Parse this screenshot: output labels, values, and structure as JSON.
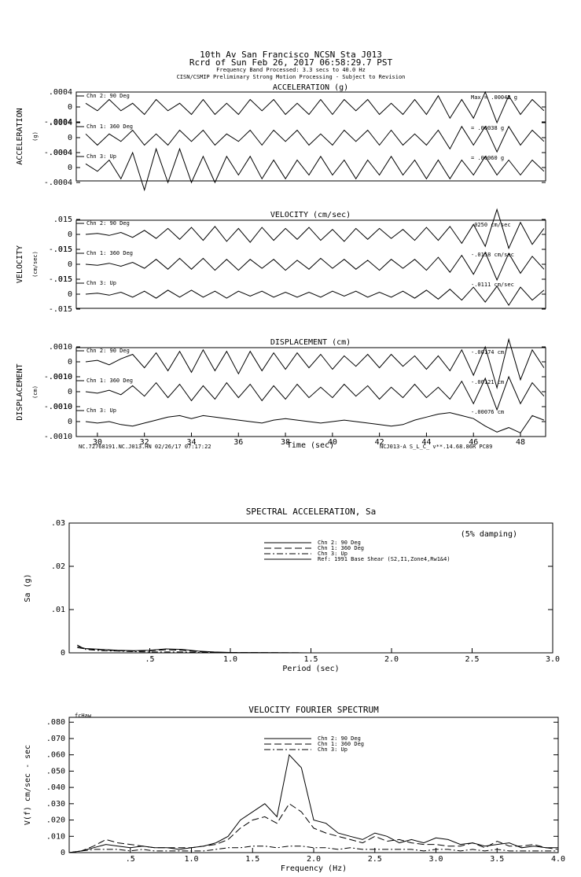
{
  "header": {
    "lines": [
      "10th Av San Francisco     NCSN Sta J013",
      "Rcrd of Sun Feb 26, 2017 06:58:29.7 PST",
      "Frequency Band Processed: 3.3 secs to 40.0 Hz",
      "CISN/CSMIP Preliminary Strong Motion Processing - Subject to Revision"
    ]
  },
  "chart_data": [
    {
      "type": "waveform",
      "title": "ACCELERATION (g)",
      "ylabel": "ACCELERATION",
      "yunit": "(g)",
      "x": [
        29.5,
        30,
        30.5,
        31,
        31.5,
        32,
        32.5,
        33,
        33.5,
        34,
        34.5,
        35,
        35.5,
        36,
        36.5,
        37,
        37.5,
        38,
        38.5,
        39,
        39.5,
        40,
        40.5,
        41,
        41.5,
        42,
        42.5,
        43,
        43.5,
        44,
        44.5,
        45,
        45.5,
        46,
        46.5,
        47,
        47.5,
        48,
        48.5,
        49
      ],
      "xlim": [
        29.1,
        49.07
      ],
      "ylim": [
        -0.0004,
        0.0004
      ],
      "yticks": [
        {
          "value": 0.0004,
          "label": ".0004"
        },
        0,
        {
          "value": -0.0004,
          "label": "-.0004"
        }
      ],
      "series": [
        {
          "name": "Chn 2: 90 Deg",
          "max_label": "Max = .00042 g",
          "color": "#000000",
          "values": [
            0.0001,
            -0.0001,
            0.0002,
            -0.0001,
            0.0001,
            -0.0002,
            0.0002,
            -0.0001,
            0.0001,
            -0.0002,
            0.0002,
            -0.0002,
            0.0001,
            -0.0002,
            0.0002,
            -0.0001,
            0.0002,
            -0.0002,
            0.0001,
            -0.0002,
            0.0002,
            -0.0002,
            0.0002,
            -0.0001,
            0.0002,
            -0.0002,
            0.0001,
            -0.0002,
            0.0002,
            -0.0002,
            0.0003,
            -0.0003,
            0.0002,
            -0.0003,
            0.0004,
            -0.00042,
            0.0003,
            -0.0002,
            0.0002,
            -0.0001
          ]
        },
        {
          "name": "Chn 1: 360 Deg",
          "max_label": "= .00038 g",
          "color": "#000000",
          "values": [
            0.0001,
            -0.0002,
            0.0001,
            -0.0001,
            0.0002,
            -0.0002,
            0.0001,
            -0.0002,
            0.0002,
            -0.0001,
            0.0002,
            -0.0002,
            0.0001,
            -0.0001,
            0.0002,
            -0.0002,
            0.0002,
            -0.0001,
            0.0002,
            -0.0002,
            0.0001,
            -0.0002,
            0.0002,
            -0.0001,
            0.0002,
            -0.0002,
            0.0002,
            -0.0002,
            0.0001,
            -0.0002,
            0.0002,
            -0.0003,
            0.0003,
            -0.0002,
            0.0003,
            -0.00038,
            0.0003,
            -0.0002,
            0.0002,
            -0.0001
          ]
        },
        {
          "name": "Chn 3: Up",
          "max_label": "= .00060 g",
          "color": "#000000",
          "values": [
            0.0001,
            -0.0001,
            0.0002,
            -0.0003,
            0.0004,
            -0.0006,
            0.0005,
            -0.0004,
            0.0005,
            -0.0004,
            0.0003,
            -0.0004,
            0.0003,
            -0.0002,
            0.0003,
            -0.0003,
            0.0002,
            -0.0003,
            0.0002,
            -0.0002,
            0.0003,
            -0.0002,
            0.0002,
            -0.0003,
            0.0002,
            -0.0002,
            0.0003,
            -0.0002,
            0.0002,
            -0.0003,
            0.0002,
            -0.0003,
            0.0002,
            -0.0002,
            0.0003,
            -0.0002,
            0.0002,
            -0.0002,
            0.0002,
            -0.0001
          ]
        }
      ]
    },
    {
      "type": "waveform",
      "title": "VELOCITY (cm/sec)",
      "ylabel": "VELOCITY",
      "yunit": "(cm/sec)",
      "x": [
        29.5,
        30,
        30.5,
        31,
        31.5,
        32,
        32.5,
        33,
        33.5,
        34,
        34.5,
        35,
        35.5,
        36,
        36.5,
        37,
        37.5,
        38,
        38.5,
        39,
        39.5,
        40,
        40.5,
        41,
        41.5,
        42,
        42.5,
        43,
        43.5,
        44,
        44.5,
        45,
        45.5,
        46,
        46.5,
        47,
        47.5,
        48,
        48.5,
        49
      ],
      "xlim": [
        29.1,
        49.07
      ],
      "ylim": [
        -0.015,
        0.015
      ],
      "yticks": [
        {
          "value": 0.015,
          "label": ".015"
        },
        0,
        {
          "value": -0.015,
          "label": "-.015"
        }
      ],
      "series": [
        {
          "name": "Chn 2: 90 Deg",
          "max_label": ".0250 cm/sec",
          "color": "#000000",
          "values": [
            0,
            0.001,
            -0.001,
            0.002,
            -0.003,
            0.004,
            -0.004,
            0.006,
            -0.005,
            0.007,
            -0.006,
            0.008,
            -0.007,
            0.006,
            -0.008,
            0.007,
            -0.006,
            0.006,
            -0.005,
            0.007,
            -0.006,
            0.005,
            -0.007,
            0.006,
            -0.005,
            0.006,
            -0.004,
            0.005,
            -0.006,
            0.007,
            -0.006,
            0.008,
            -0.009,
            0.01,
            -0.012,
            0.025,
            -0.014,
            0.012,
            -0.01,
            0.006
          ]
        },
        {
          "name": "Chn 1: 360 Deg",
          "max_label": "-.0158 cm/sec",
          "color": "#000000",
          "values": [
            0,
            -0.001,
            0.001,
            -0.002,
            0.002,
            -0.004,
            0.005,
            -0.005,
            0.006,
            -0.005,
            0.006,
            -0.006,
            0.005,
            -0.006,
            0.005,
            -0.004,
            0.005,
            -0.006,
            0.004,
            -0.005,
            0.006,
            -0.004,
            0.005,
            -0.005,
            0.004,
            -0.006,
            0.005,
            -0.004,
            0.005,
            -0.006,
            0.007,
            -0.008,
            0.009,
            -0.01,
            0.012,
            -0.0158,
            0.011,
            -0.009,
            0.008,
            -0.005
          ]
        },
        {
          "name": "Chn 3: Up",
          "max_label": "-.0111 cm/sec",
          "color": "#000000",
          "values": [
            0,
            0.001,
            -0.001,
            0.002,
            -0.003,
            0.003,
            -0.004,
            0.004,
            -0.003,
            0.004,
            -0.003,
            0.003,
            -0.004,
            0.003,
            -0.002,
            0.003,
            -0.003,
            0.002,
            -0.003,
            0.002,
            -0.003,
            0.003,
            -0.002,
            0.003,
            -0.003,
            0.002,
            -0.003,
            0.003,
            -0.004,
            0.004,
            -0.005,
            0.005,
            -0.006,
            0.007,
            -0.008,
            0.008,
            -0.0111,
            0.007,
            -0.006,
            0.004
          ]
        }
      ]
    },
    {
      "type": "waveform",
      "title": "DISPLACEMENT (cm)",
      "ylabel": "DISPLACEMENT",
      "yunit": "(cm)",
      "x": [
        29.5,
        30,
        30.5,
        31,
        31.5,
        32,
        32.5,
        33,
        33.5,
        34,
        34.5,
        35,
        35.5,
        36,
        36.5,
        37,
        37.5,
        38,
        38.5,
        39,
        39.5,
        40,
        40.5,
        41,
        41.5,
        42,
        42.5,
        43,
        43.5,
        44,
        44.5,
        45,
        45.5,
        46,
        46.5,
        47,
        47.5,
        48,
        48.5,
        49
      ],
      "xlim": [
        29.1,
        49.07
      ],
      "ylim": [
        -0.001,
        0.001
      ],
      "yticks": [
        {
          "value": 0.001,
          "label": ".0010"
        },
        0,
        {
          "value": -0.001,
          "label": "-.0010"
        }
      ],
      "xticks": [
        30,
        32,
        34,
        36,
        38,
        40,
        42,
        44,
        46,
        48
      ],
      "xlabel": "Time (sec)",
      "footer_left": "NC.72768191.NC.J013.HN 02/26/17 07:17:22",
      "footer_right": "NCJ013-A  S_L_C_  v**.14.68.86R PC89",
      "series": [
        {
          "name": "Chn 2: 90 Deg",
          "max_label": "-.00174 cm",
          "color": "#000000",
          "values": [
            0,
            0.0001,
            -0.0002,
            0.0002,
            0.0005,
            -0.0004,
            0.0006,
            -0.0006,
            0.0007,
            -0.0007,
            0.0008,
            -0.0006,
            0.0007,
            -0.0008,
            0.0007,
            -0.0006,
            0.0006,
            -0.0005,
            0.0006,
            -0.0004,
            0.0005,
            -0.0005,
            0.0004,
            -0.0003,
            0.0005,
            -0.0004,
            0.0005,
            -0.0003,
            0.0004,
            -0.0005,
            0.0004,
            -0.0006,
            0.0008,
            -0.0009,
            0.001,
            -0.00174,
            0.0015,
            -0.0012,
            0.0008,
            -0.0004
          ]
        },
        {
          "name": "Chn 1: 360 Deg",
          "max_label": "-.00121 cm",
          "color": "#000000",
          "values": [
            0,
            -0.0001,
            0.0001,
            -0.0002,
            0.0004,
            -0.0003,
            0.0006,
            -0.0004,
            0.0005,
            -0.0006,
            0.0004,
            -0.0005,
            0.0006,
            -0.0004,
            0.0005,
            -0.0006,
            0.0004,
            -0.0005,
            0.0005,
            -0.0004,
            0.0003,
            -0.0004,
            0.0005,
            -0.0003,
            0.0004,
            -0.0005,
            0.0003,
            -0.0004,
            0.0005,
            -0.0004,
            0.0003,
            -0.0005,
            0.0007,
            -0.0008,
            0.0009,
            -0.00121,
            0.001,
            -0.0008,
            0.0006,
            -0.0003
          ]
        },
        {
          "name": "Chn 3: Up",
          "max_label": "-.00076 cm",
          "color": "#000000",
          "values": [
            0,
            -0.0001,
            0,
            -0.0002,
            -0.0003,
            -0.0001,
            0.0001,
            0.0003,
            0.0004,
            0.0002,
            0.0004,
            0.0003,
            0.0002,
            0.0001,
            0,
            -0.0001,
            0.0001,
            0.0002,
            0.0001,
            0,
            -0.0001,
            0,
            0.0001,
            0,
            -0.0001,
            -0.0002,
            -0.0003,
            -0.0002,
            0.0001,
            0.0003,
            0.0005,
            0.0006,
            0.0004,
            0.0002,
            -0.0003,
            -0.0007,
            -0.0004,
            -0.00076,
            0.0004,
            0.0001
          ]
        }
      ]
    },
    {
      "type": "line",
      "title": "SPECTRAL ACCELERATION, Sa",
      "xlabel": "Period (sec)",
      "ylabel": "Sa (g)",
      "annotation": "(5% damping)",
      "x": [
        0.05,
        0.1,
        0.2,
        0.3,
        0.4,
        0.5,
        0.6,
        0.7,
        0.8,
        0.9,
        1.0,
        1.5,
        2.0,
        2.5,
        3.0
      ],
      "xlim": [
        0,
        3
      ],
      "ylim": [
        0,
        0.03
      ],
      "xticks": [
        {
          "value": 0.5,
          "label": ".5"
        },
        {
          "value": 1,
          "label": "1.0"
        },
        {
          "value": 1.5,
          "label": "1.5"
        },
        {
          "value": 2,
          "label": "2.0"
        },
        {
          "value": 2.5,
          "label": "2.5"
        },
        {
          "value": 3,
          "label": "3.0"
        }
      ],
      "yticks": [
        0,
        {
          "value": 0.01,
          "label": ".01"
        },
        {
          "value": 0.02,
          "label": ".02"
        },
        {
          "value": 0.03,
          "label": ".03"
        }
      ],
      "series": [
        {
          "name": "Chn 2: 90 Deg",
          "color": "#000000",
          "dash": "none",
          "values": [
            0.0015,
            0.001,
            0.0008,
            0.0006,
            0.0005,
            0.0006,
            0.0009,
            0.0008,
            0.0004,
            0.0002,
            0.0001,
            0,
            0,
            0,
            0
          ]
        },
        {
          "name": "Chn 1: 360 Deg",
          "color": "#000000",
          "dash": "9 4",
          "values": [
            0.0012,
            0.0009,
            0.0007,
            0.0005,
            0.0004,
            0.0005,
            0.0007,
            0.0006,
            0.0003,
            0.0001,
            0.0001,
            0,
            0,
            0,
            0
          ]
        },
        {
          "name": "Chn 3: Up",
          "color": "#000000",
          "dash": "8 3 2 3",
          "values": [
            0.0018,
            0.0008,
            0.0005,
            0.0004,
            0.0003,
            0.0002,
            0.0002,
            0.0002,
            0.0001,
            0.0001,
            0,
            0,
            0,
            0,
            0
          ]
        },
        {
          "name": "Ref: 1991 Base Shear (S2,I1,Zone4,Rw1&4)",
          "color": "#000000",
          "dash": "none",
          "values": [
            null,
            null,
            null,
            null,
            null,
            null,
            null,
            null,
            null,
            null,
            null,
            null,
            null,
            null,
            null
          ]
        }
      ]
    },
    {
      "type": "line",
      "title": "VELOCITY FOURIER SPECTRUM",
      "xlabel": "Frequency (Hz)",
      "ylabel": "V(f)  cm/sec - sec",
      "annotation": "fcHaw",
      "x": [
        0,
        0.1,
        0.2,
        0.3,
        0.4,
        0.5,
        0.6,
        0.7,
        0.8,
        0.9,
        1.0,
        1.1,
        1.2,
        1.3,
        1.4,
        1.5,
        1.6,
        1.7,
        1.8,
        1.9,
        2.0,
        2.1,
        2.2,
        2.3,
        2.4,
        2.5,
        2.6,
        2.7,
        2.8,
        2.9,
        3.0,
        3.1,
        3.2,
        3.3,
        3.4,
        3.5,
        3.6,
        3.7,
        3.8,
        3.9,
        4.0
      ],
      "xlim": [
        0,
        4
      ],
      "ylim": [
        0,
        0.083
      ],
      "xticks": [
        {
          "value": 0.5,
          "label": ".5"
        },
        {
          "value": 1,
          "label": "1.0"
        },
        {
          "value": 1.5,
          "label": "1.5"
        },
        {
          "value": 2,
          "label": "2.0"
        },
        {
          "value": 2.5,
          "label": "2.5"
        },
        {
          "value": 3,
          "label": "3.0"
        },
        {
          "value": 3.5,
          "label": "3.5"
        },
        {
          "value": 4,
          "label": "4.0"
        }
      ],
      "yticks": [
        0,
        {
          "value": 0.01,
          "label": ".010"
        },
        {
          "value": 0.02,
          "label": ".020"
        },
        {
          "value": 0.03,
          "label": ".030"
        },
        {
          "value": 0.04,
          "label": ".040"
        },
        {
          "value": 0.05,
          "label": ".050"
        },
        {
          "value": 0.06,
          "label": ".060"
        },
        {
          "value": 0.07,
          "label": ".070"
        },
        {
          "value": 0.08,
          "label": ".080"
        }
      ],
      "series": [
        {
          "name": "Chn 2: 90 Deg",
          "color": "#000000",
          "dash": "none",
          "values": [
            0,
            0.001,
            0.003,
            0.005,
            0.004,
            0.003,
            0.004,
            0.003,
            0.003,
            0.002,
            0.003,
            0.004,
            0.006,
            0.01,
            0.02,
            0.025,
            0.03,
            0.022,
            0.06,
            0.052,
            0.02,
            0.018,
            0.012,
            0.01,
            0.008,
            0.012,
            0.01,
            0.006,
            0.008,
            0.006,
            0.009,
            0.008,
            0.005,
            0.006,
            0.004,
            0.005,
            0.006,
            0.003,
            0.004,
            0.003,
            0.003
          ]
        },
        {
          "name": "Chn 1: 360 Deg",
          "color": "#000000",
          "dash": "9 4",
          "values": [
            0,
            0.001,
            0.004,
            0.008,
            0.006,
            0.005,
            0.004,
            0.003,
            0.003,
            0.003,
            0.003,
            0.004,
            0.005,
            0.008,
            0.015,
            0.02,
            0.022,
            0.018,
            0.03,
            0.025,
            0.015,
            0.012,
            0.01,
            0.008,
            0.006,
            0.01,
            0.007,
            0.008,
            0.006,
            0.005,
            0.005,
            0.004,
            0.004,
            0.006,
            0.003,
            0.007,
            0.004,
            0.004,
            0.005,
            0.003,
            0.002
          ]
        },
        {
          "name": "Chn 3: Up",
          "color": "#000000",
          "dash": "8 3 2 3",
          "values": [
            0,
            0.001,
            0.002,
            0.002,
            0.002,
            0.001,
            0.002,
            0.001,
            0.001,
            0.001,
            0.001,
            0.001,
            0.002,
            0.003,
            0.003,
            0.004,
            0.004,
            0.003,
            0.004,
            0.004,
            0.003,
            0.003,
            0.002,
            0.003,
            0.002,
            0.002,
            0.002,
            0.002,
            0.002,
            0.001,
            0.002,
            0.002,
            0.001,
            0.002,
            0.001,
            0.002,
            0.001,
            0.001,
            0.001,
            0.001,
            0.001
          ]
        }
      ]
    }
  ]
}
